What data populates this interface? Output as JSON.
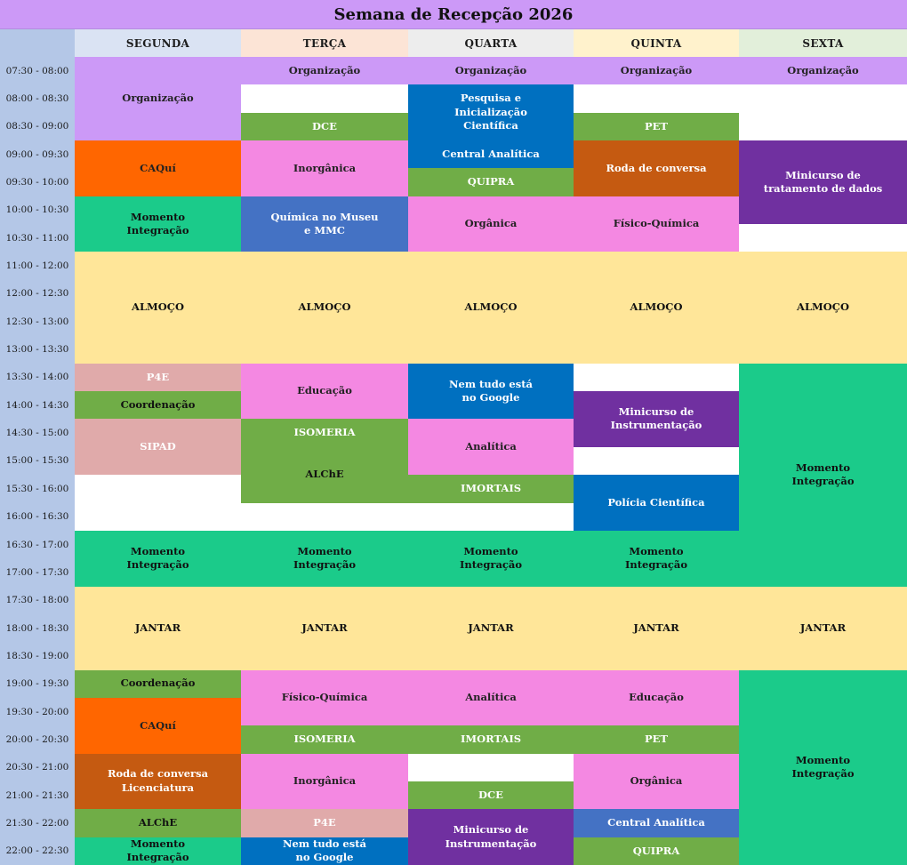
{
  "title": "Semana de Recepção 2026",
  "days": [
    "SEGUNDA",
    "TERÇA",
    "QUARTA",
    "QUINTA",
    "SEXTA"
  ],
  "day_colors": [
    "#dae3f3",
    "#fce4d6",
    "#ededed",
    "#fff2cc",
    "#e2efda"
  ],
  "times": [
    "07:30 - 08:00",
    "08:00 - 08:30",
    "08:30 - 09:00",
    "09:00 - 09:30",
    "09:30 - 10:00",
    "10:00 - 10:30",
    "10:30 - 11:00",
    "11:00 - 12:00",
    "12:00 - 12:30",
    "12:30 - 13:00",
    "13:00 - 13:30",
    "13:30 - 14:00",
    "14:00 - 14:30",
    "14:30 - 15:00",
    "15:00 - 15:30",
    "15:30 - 16:00",
    "16:00 - 16:30",
    "16:30 - 17:00",
    "17:00 - 17:30",
    "17:30 - 18:00",
    "18:00 - 18:30",
    "18:30 - 19:00",
    "19:00 - 19:30",
    "19:30 - 20:00",
    "20:00 - 20:30",
    "20:30 - 21:00",
    "21:00 - 21:30",
    "21:30 - 22:00",
    "22:00 - 22:30"
  ],
  "colors": {
    "lavender": "#cc99f7",
    "blue": "#0070c0",
    "green": "#70ad47",
    "orange": "#ff6600",
    "pink": "#f488e2",
    "brown": "#c55a11",
    "purple": "#7030a0",
    "teal": "#1bcb8a",
    "steel": "#4472c4",
    "cream": "#ffe699",
    "rose": "#e0aaaa"
  },
  "events": [
    {
      "day": 0,
      "row": 0,
      "span": 3,
      "label": "Organização",
      "color": "lavender",
      "text": "#222"
    },
    {
      "day": 1,
      "row": 0,
      "span": 1,
      "label": "Organização",
      "color": "lavender",
      "text": "#222"
    },
    {
      "day": 2,
      "row": 0,
      "span": 1,
      "label": "Organização",
      "color": "lavender",
      "text": "#222"
    },
    {
      "day": 3,
      "row": 0,
      "span": 1,
      "label": "Organização",
      "color": "lavender",
      "text": "#222"
    },
    {
      "day": 4,
      "row": 0,
      "span": 1,
      "label": "Organização",
      "color": "lavender",
      "text": "#222"
    },
    {
      "day": 1,
      "row": 2,
      "span": 1,
      "label": "DCE",
      "color": "green",
      "text": "#fff"
    },
    {
      "day": 2,
      "row": 1,
      "span": 2,
      "label": "Pesquisa e\nInicialização\nCientífica",
      "color": "blue",
      "text": "#fff"
    },
    {
      "day": 3,
      "row": 2,
      "span": 1,
      "label": "PET",
      "color": "green",
      "text": "#fff"
    },
    {
      "day": 0,
      "row": 3,
      "span": 2,
      "label": "CAQuí",
      "color": "orange",
      "text": "#222"
    },
    {
      "day": 1,
      "row": 3,
      "span": 2,
      "label": "Inorgânica",
      "color": "pink",
      "text": "#222"
    },
    {
      "day": 2,
      "row": 3,
      "span": 1,
      "label": "Central Analítica",
      "color": "blue",
      "text": "#fff"
    },
    {
      "day": 2,
      "row": 4,
      "span": 1,
      "label": "QUIPRA",
      "color": "green",
      "text": "#fff"
    },
    {
      "day": 3,
      "row": 3,
      "span": 2,
      "label": "Roda de conversa",
      "color": "brown",
      "text": "#fff"
    },
    {
      "day": 4,
      "row": 3,
      "span": 3,
      "label": "Minicurso de\ntratamento de dados",
      "color": "purple",
      "text": "#fff"
    },
    {
      "day": 0,
      "row": 5,
      "span": 2,
      "label": "Momento\nIntegração",
      "color": "teal",
      "text": "#111"
    },
    {
      "day": 1,
      "row": 5,
      "span": 2,
      "label": "Química no Museu\ne MMC",
      "color": "steel",
      "text": "#fff"
    },
    {
      "day": 2,
      "row": 5,
      "span": 2,
      "label": "Orgânica",
      "color": "pink",
      "text": "#222"
    },
    {
      "day": 3,
      "row": 5,
      "span": 2,
      "label": "Físico-Química",
      "color": "pink",
      "text": "#222"
    },
    {
      "day": 0,
      "row": 7,
      "span": 4,
      "label": "ALMOÇO",
      "color": "cream",
      "text": "#111"
    },
    {
      "day": 1,
      "row": 7,
      "span": 4,
      "label": "ALMOÇO",
      "color": "cream",
      "text": "#111"
    },
    {
      "day": 2,
      "row": 7,
      "span": 4,
      "label": "ALMOÇO",
      "color": "cream",
      "text": "#111"
    },
    {
      "day": 3,
      "row": 7,
      "span": 4,
      "label": "ALMOÇO",
      "color": "cream",
      "text": "#111"
    },
    {
      "day": 4,
      "row": 7,
      "span": 4,
      "label": "ALMOÇO",
      "color": "cream",
      "text": "#111"
    },
    {
      "day": 0,
      "row": 11,
      "span": 1,
      "label": "P4E",
      "color": "rose",
      "text": "#fff"
    },
    {
      "day": 0,
      "row": 12,
      "span": 1,
      "label": "Coordenação",
      "color": "green",
      "text": "#111"
    },
    {
      "day": 0,
      "row": 13,
      "span": 2,
      "label": "SIPAD",
      "color": "rose",
      "text": "#fff"
    },
    {
      "day": 1,
      "row": 11,
      "span": 2,
      "label": "Educação",
      "color": "pink",
      "text": "#222"
    },
    {
      "day": 1,
      "row": 13,
      "span": 1,
      "label": "ISOMERIA",
      "color": "green",
      "text": "#fff"
    },
    {
      "day": 1,
      "row": 14,
      "span": 2,
      "label": "ALChE",
      "color": "green",
      "text": "#111"
    },
    {
      "day": 2,
      "row": 11,
      "span": 2,
      "label": "Nem tudo está\nno Google",
      "color": "blue",
      "text": "#fff"
    },
    {
      "day": 2,
      "row": 13,
      "span": 2,
      "label": "Analítica",
      "color": "pink",
      "text": "#222"
    },
    {
      "day": 2,
      "row": 15,
      "span": 1,
      "label": "IMORTAIS",
      "color": "green",
      "text": "#fff"
    },
    {
      "day": 3,
      "row": 12,
      "span": 2,
      "label": "Minicurso de\nInstrumentação",
      "color": "purple",
      "text": "#fff"
    },
    {
      "day": 3,
      "row": 15,
      "span": 2,
      "label": "Polícia Científica",
      "color": "blue",
      "text": "#fff"
    },
    {
      "day": 4,
      "row": 11,
      "span": 8,
      "label": "Momento\nIntegração",
      "color": "teal",
      "text": "#111"
    },
    {
      "day": 0,
      "row": 17,
      "span": 2,
      "label": "Momento\nIntegração",
      "color": "teal",
      "text": "#111"
    },
    {
      "day": 1,
      "row": 17,
      "span": 2,
      "label": "Momento\nIntegração",
      "color": "teal",
      "text": "#111"
    },
    {
      "day": 2,
      "row": 17,
      "span": 2,
      "label": "Momento\nIntegração",
      "color": "teal",
      "text": "#111"
    },
    {
      "day": 3,
      "row": 17,
      "span": 2,
      "label": "Momento\nIntegração",
      "color": "teal",
      "text": "#111"
    },
    {
      "day": 0,
      "row": 19,
      "span": 3,
      "label": "JANTAR",
      "color": "cream",
      "text": "#111"
    },
    {
      "day": 1,
      "row": 19,
      "span": 3,
      "label": "JANTAR",
      "color": "cream",
      "text": "#111"
    },
    {
      "day": 2,
      "row": 19,
      "span": 3,
      "label": "JANTAR",
      "color": "cream",
      "text": "#111"
    },
    {
      "day": 3,
      "row": 19,
      "span": 3,
      "label": "JANTAR",
      "color": "cream",
      "text": "#111"
    },
    {
      "day": 4,
      "row": 19,
      "span": 3,
      "label": "JANTAR",
      "color": "cream",
      "text": "#111"
    },
    {
      "day": 0,
      "row": 22,
      "span": 1,
      "label": "Coordenação",
      "color": "green",
      "text": "#111"
    },
    {
      "day": 0,
      "row": 23,
      "span": 2,
      "label": "CAQuí",
      "color": "orange",
      "text": "#222"
    },
    {
      "day": 0,
      "row": 25,
      "span": 2,
      "label": "Roda de conversa Licenciatura",
      "color": "brown",
      "text": "#fff"
    },
    {
      "day": 0,
      "row": 27,
      "span": 1,
      "label": "ALChE",
      "color": "green",
      "text": "#111"
    },
    {
      "day": 0,
      "row": 28,
      "span": 1,
      "label": "Momento\nIntegração",
      "color": "teal",
      "text": "#111"
    },
    {
      "day": 1,
      "row": 22,
      "span": 2,
      "label": "Físico-Química",
      "color": "pink",
      "text": "#222"
    },
    {
      "day": 1,
      "row": 24,
      "span": 1,
      "label": "ISOMERIA",
      "color": "green",
      "text": "#fff"
    },
    {
      "day": 1,
      "row": 25,
      "span": 2,
      "label": "Inorgânica",
      "color": "pink",
      "text": "#222"
    },
    {
      "day": 1,
      "row": 27,
      "span": 1,
      "label": "P4E",
      "color": "rose",
      "text": "#fff"
    },
    {
      "day": 1,
      "row": 28,
      "span": 1,
      "label": "Nem tudo está\nno Google",
      "color": "blue",
      "text": "#fff"
    },
    {
      "day": 2,
      "row": 22,
      "span": 2,
      "label": "Analítica",
      "color": "pink",
      "text": "#222"
    },
    {
      "day": 2,
      "row": 24,
      "span": 1,
      "label": "IMORTAIS",
      "color": "green",
      "text": "#fff"
    },
    {
      "day": 2,
      "row": 26,
      "span": 1,
      "label": "DCE",
      "color": "green",
      "text": "#fff"
    },
    {
      "day": 2,
      "row": 27,
      "span": 2,
      "label": "Minicurso de\nInstrumentação",
      "color": "purple",
      "text": "#fff"
    },
    {
      "day": 3,
      "row": 22,
      "span": 2,
      "label": "Educação",
      "color": "pink",
      "text": "#222"
    },
    {
      "day": 3,
      "row": 24,
      "span": 1,
      "label": "PET",
      "color": "green",
      "text": "#fff"
    },
    {
      "day": 3,
      "row": 25,
      "span": 2,
      "label": "Orgânica",
      "color": "pink",
      "text": "#222"
    },
    {
      "day": 3,
      "row": 27,
      "span": 1,
      "label": "Central Analítica",
      "color": "steel",
      "text": "#fff"
    },
    {
      "day": 3,
      "row": 28,
      "span": 1,
      "label": "QUIPRA",
      "color": "green",
      "text": "#fff"
    },
    {
      "day": 4,
      "row": 22,
      "span": 7,
      "label": "Momento\nIntegração",
      "color": "teal",
      "text": "#111"
    }
  ]
}
